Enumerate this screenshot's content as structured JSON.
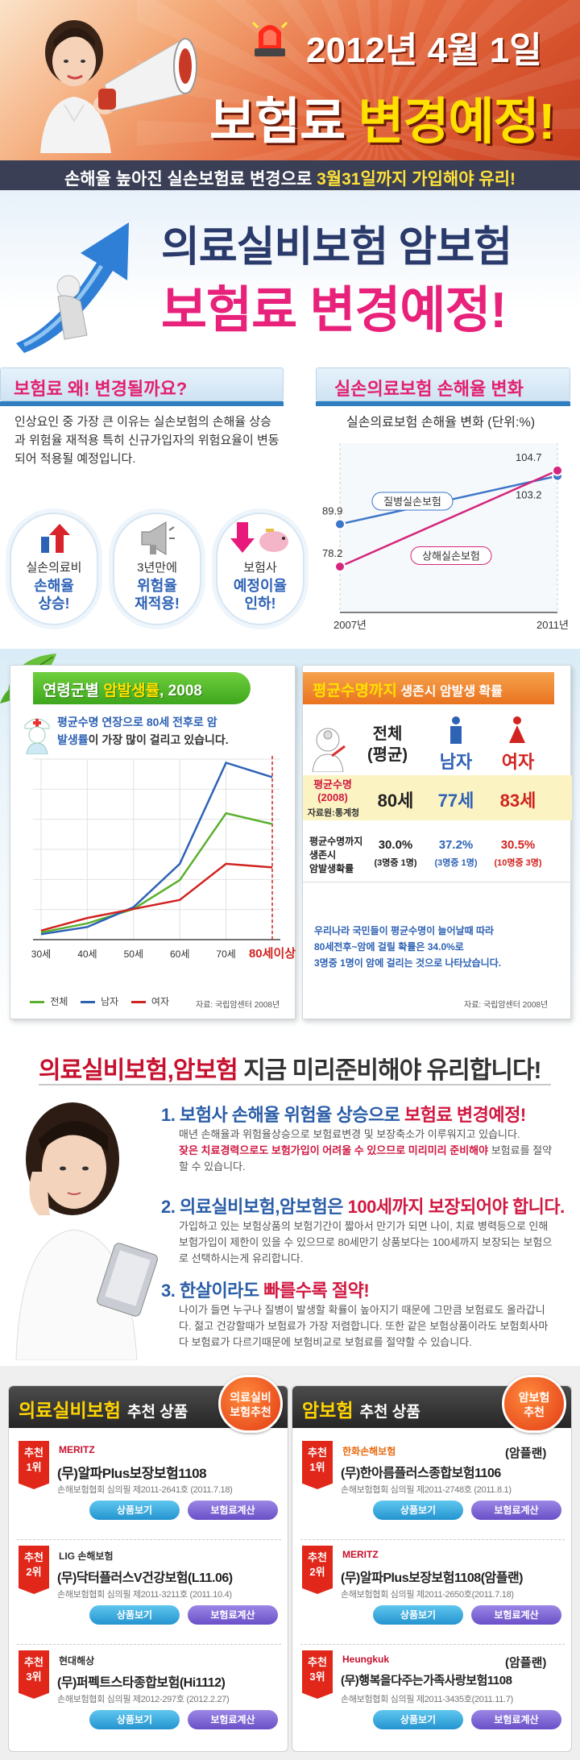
{
  "hero": {
    "date": "2012년 4월 1일",
    "title_a": "보험료 ",
    "title_b": "변경예정!",
    "strip_a": "손해율 높아진 실손보험료 변경으로 ",
    "strip_b": "3월31일까지 가입해야 유리!"
  },
  "banner": {
    "line1": "의료실비보험 암보험",
    "line2": "보험료 변경예정!"
  },
  "why": {
    "title_a": "보험료 ",
    "title_b": "왜! 변경될까요?",
    "text": "인상요인 중 가장 큰 이유는 실손보험의 손해율 상승과 위험율 재적용  특히 신규가입자의 위험요율이 변동되어 적용될 예정입니다.",
    "items": [
      {
        "label": "실손의료비",
        "highlight": "손해율\n상승!"
      },
      {
        "label": "3년만에",
        "highlight": "위험율\n재적용!"
      },
      {
        "label": "보험사",
        "highlight": "예정이율\n인하!"
      }
    ]
  },
  "loss": {
    "title_a": "실손의료보험 ",
    "title_b": "손해율 변화",
    "subtitle": "실손의료보험 손해율 변화 (단위:%)",
    "label_disease": "질병실손보험",
    "label_injury": "상해실손보험",
    "x_start": "2007년",
    "x_end": "2011년"
  },
  "age": {
    "title_a": "연령군별 ",
    "title_b": "암발생률",
    "title_c": ", 2008",
    "note_a": "평균수명 연장으로 ",
    "note_b": "80세 전후로",
    "note_c": " 암",
    "note_d": "발생률",
    "note_e": "이 가장 많이 걸리고 있습니다.",
    "ticks": [
      "30세",
      "40세",
      "50세",
      "60세",
      "70세",
      "80세이상"
    ],
    "legend": [
      "전체",
      "남자",
      "여자"
    ],
    "source": "자료: 국립암센터 2008년"
  },
  "survival": {
    "title_a": "평균수명까지",
    "title_b": " 생존시 암발생 확률",
    "col_total": "전체\n(평균)",
    "col_male": "남자",
    "col_female": "여자",
    "row1_label": "평균수명\n(2008)",
    "row1_src": "자료원:통계청",
    "row1_vals": [
      "80세",
      "77세",
      "83세"
    ],
    "row2_label": "평균수명까지\n생존시\n암발생확률",
    "row2_vals": [
      {
        "pct": "30.0%",
        "sub": "(3명중 1명)"
      },
      {
        "pct": "37.2%",
        "sub": "(3명중 1명)"
      },
      {
        "pct": "30.5%",
        "sub": "(10명중 3명)"
      }
    ],
    "note_a": "우리나라 국민들이 평균수명이 늘어날때 따라",
    "note_b": "80세전후~암에 걸릴 확률은 34.0%로",
    "note_c": "3명중 1명이 암에 걸리는 것으로 나타났습니다.",
    "source": "자료: 국립암센터 2008년"
  },
  "headline": {
    "a": "의료실비보험,암보험",
    "b": " 지금 미리준비해야 유리합니다!"
  },
  "reasons": [
    {
      "title_a": "1. 보험사 손해율 위험율 상승으로 ",
      "title_b": "보험료 변경예정!",
      "desc_a": "매년 손해율과 위험율상승으로 보험료변경 및 보장축소가 이루워지고 있습니다.",
      "desc_b": "잦은 치료경력으로도 보험가입이 어려울 수 있으므로 미리미리 준비해야",
      "desc_c": " 보험료를 절약 할 수 있습니다."
    },
    {
      "title_a": "2. 의료실비보험,암보험은 ",
      "title_b": "100세까지 보장되어야 합니다.",
      "desc_a": "가입하고 있는 보험상품의 보험기간이 짧아서 만기가 되면 나이, 치료 병력등으로 인해 보험가입이 제한이 있을 수 있으므로 80세만기 상품보다는 100세까지 보장되는 보험으로 선택하시는게 유리합니다.",
      "desc_b": "",
      "desc_c": ""
    },
    {
      "title_a": "3. 한살이라도 ",
      "title_b": "빠를수록 절약!",
      "desc_a": "나이가 들면 누구나 질병이 발생할 확률이 높아지기 때문에 그만큼 보험료도 올라갑니다. 젊고 건강할때가 보험료가 가장 저렴합니다. 또한 같은 보험상품이라도 보험회사마다 보험료가 다르기때문에 보험비교로 보험료를 절약할 수 있습니다.",
      "desc_b": "",
      "desc_c": ""
    }
  ],
  "products": {
    "left": {
      "title": "의료실비보험",
      "sub": "추천 상품",
      "badge": "의료실비\n보험추천",
      "items": [
        {
          "rank": "추천\n1위",
          "logo": "MERITZ",
          "name": "(무)알파Plus보장보험1108",
          "reg": "손해보험협회 심의필 제2011-2641호 (2011.7.18)"
        },
        {
          "rank": "추천\n2위",
          "logo": "LIG 손해보험",
          "name": "(무)닥터플러스V건강보험(L11.06)",
          "reg": "손해보험협회 심의필 제2011-3211호 (2011.10.4)"
        },
        {
          "rank": "추천\n3위",
          "logo": "현대해상",
          "name": "(무)퍼펙트스타종합보험(Hi1112)",
          "reg": "손해보험협회 심의필 제2012-297호 (2012.2.27)"
        }
      ]
    },
    "right": {
      "title": "암보험",
      "sub": "추천 상품",
      "badge": "암보험\n추천",
      "items": [
        {
          "rank": "추천\n1위",
          "logo": "한화손해보험",
          "tag": "(암플랜)",
          "name": "(무)한아름플러스종합보험1106",
          "reg": "손해보험협회 심의필 제2011-2748호 (2011.8.1)"
        },
        {
          "rank": "추천\n2위",
          "logo": "MERITZ",
          "tag": "",
          "name": "(무)알파Plus보장보험1108(암플랜)",
          "reg": "손해보험협회 심의필 제2011-2650호(2011.7.18)"
        },
        {
          "rank": "추천\n3위",
          "logo": "Heungkuk",
          "tag": "(암플랜)",
          "name": "(무)행복을다주는가족사랑보험1108",
          "reg": "손해보험협회 심의필 제2011-3435호(2011.11.7)"
        }
      ]
    },
    "btn_view": "상품보기",
    "btn_calc": "보험료계산"
  },
  "chart_data": [
    {
      "type": "line",
      "title": "실손의료보험 손해율 변화 (단위:%)",
      "categories": [
        "2007년",
        "2011년"
      ],
      "series": [
        {
          "name": "질병실손보험",
          "values": [
            89.9,
            103.2
          ],
          "color": "#3d76c8"
        },
        {
          "name": "상해실손보험",
          "values": [
            78.2,
            104.7
          ],
          "color": "#d4267c"
        }
      ]
    },
    {
      "type": "line",
      "title": "연령군별 암발생률, 2008",
      "categories": [
        "30세",
        "40세",
        "50세",
        "60세",
        "70세",
        "80세이상"
      ],
      "series": [
        {
          "name": "전체",
          "values": [
            4,
            9,
            17,
            33,
            70,
            64
          ],
          "color": "#5bb02e"
        },
        {
          "name": "남자",
          "values": [
            3,
            7,
            18,
            42,
            98,
            90
          ],
          "color": "#2e62b5"
        },
        {
          "name": "여자",
          "values": [
            5,
            12,
            17,
            22,
            42,
            40
          ],
          "color": "#d1231f"
        }
      ]
    }
  ]
}
